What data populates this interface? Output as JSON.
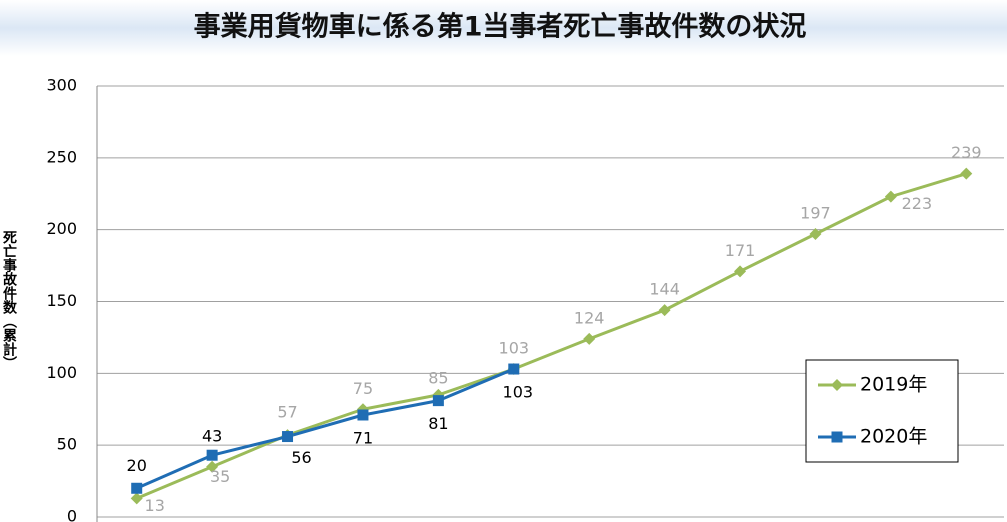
{
  "chart_data": {
    "type": "line",
    "title": "事業用貨物車に係る第1当事者死亡事故件数の状況",
    "y_label": "死亡事故件数（累計）",
    "categories": [
      null,
      null,
      null,
      null,
      null,
      null,
      null,
      null,
      null,
      null,
      null,
      null
    ],
    "series": [
      {
        "name": "2019年",
        "color": "#9bbb59",
        "marker": "diamond",
        "label_color": "#a6a6a6",
        "values": [
          13,
          35,
          57,
          75,
          85,
          103,
          124,
          144,
          171,
          197,
          223,
          239
        ]
      },
      {
        "name": "2020年",
        "color": "#1f6db4",
        "marker": "square",
        "label_color": "#000000",
        "values": [
          20,
          43,
          56,
          71,
          81,
          103,
          null,
          null,
          null,
          null,
          null,
          null
        ]
      }
    ],
    "ylim": [
      0,
      300
    ],
    "yticks": [
      0,
      50,
      100,
      150,
      200,
      250,
      300
    ],
    "grid": true,
    "legend": "right"
  }
}
